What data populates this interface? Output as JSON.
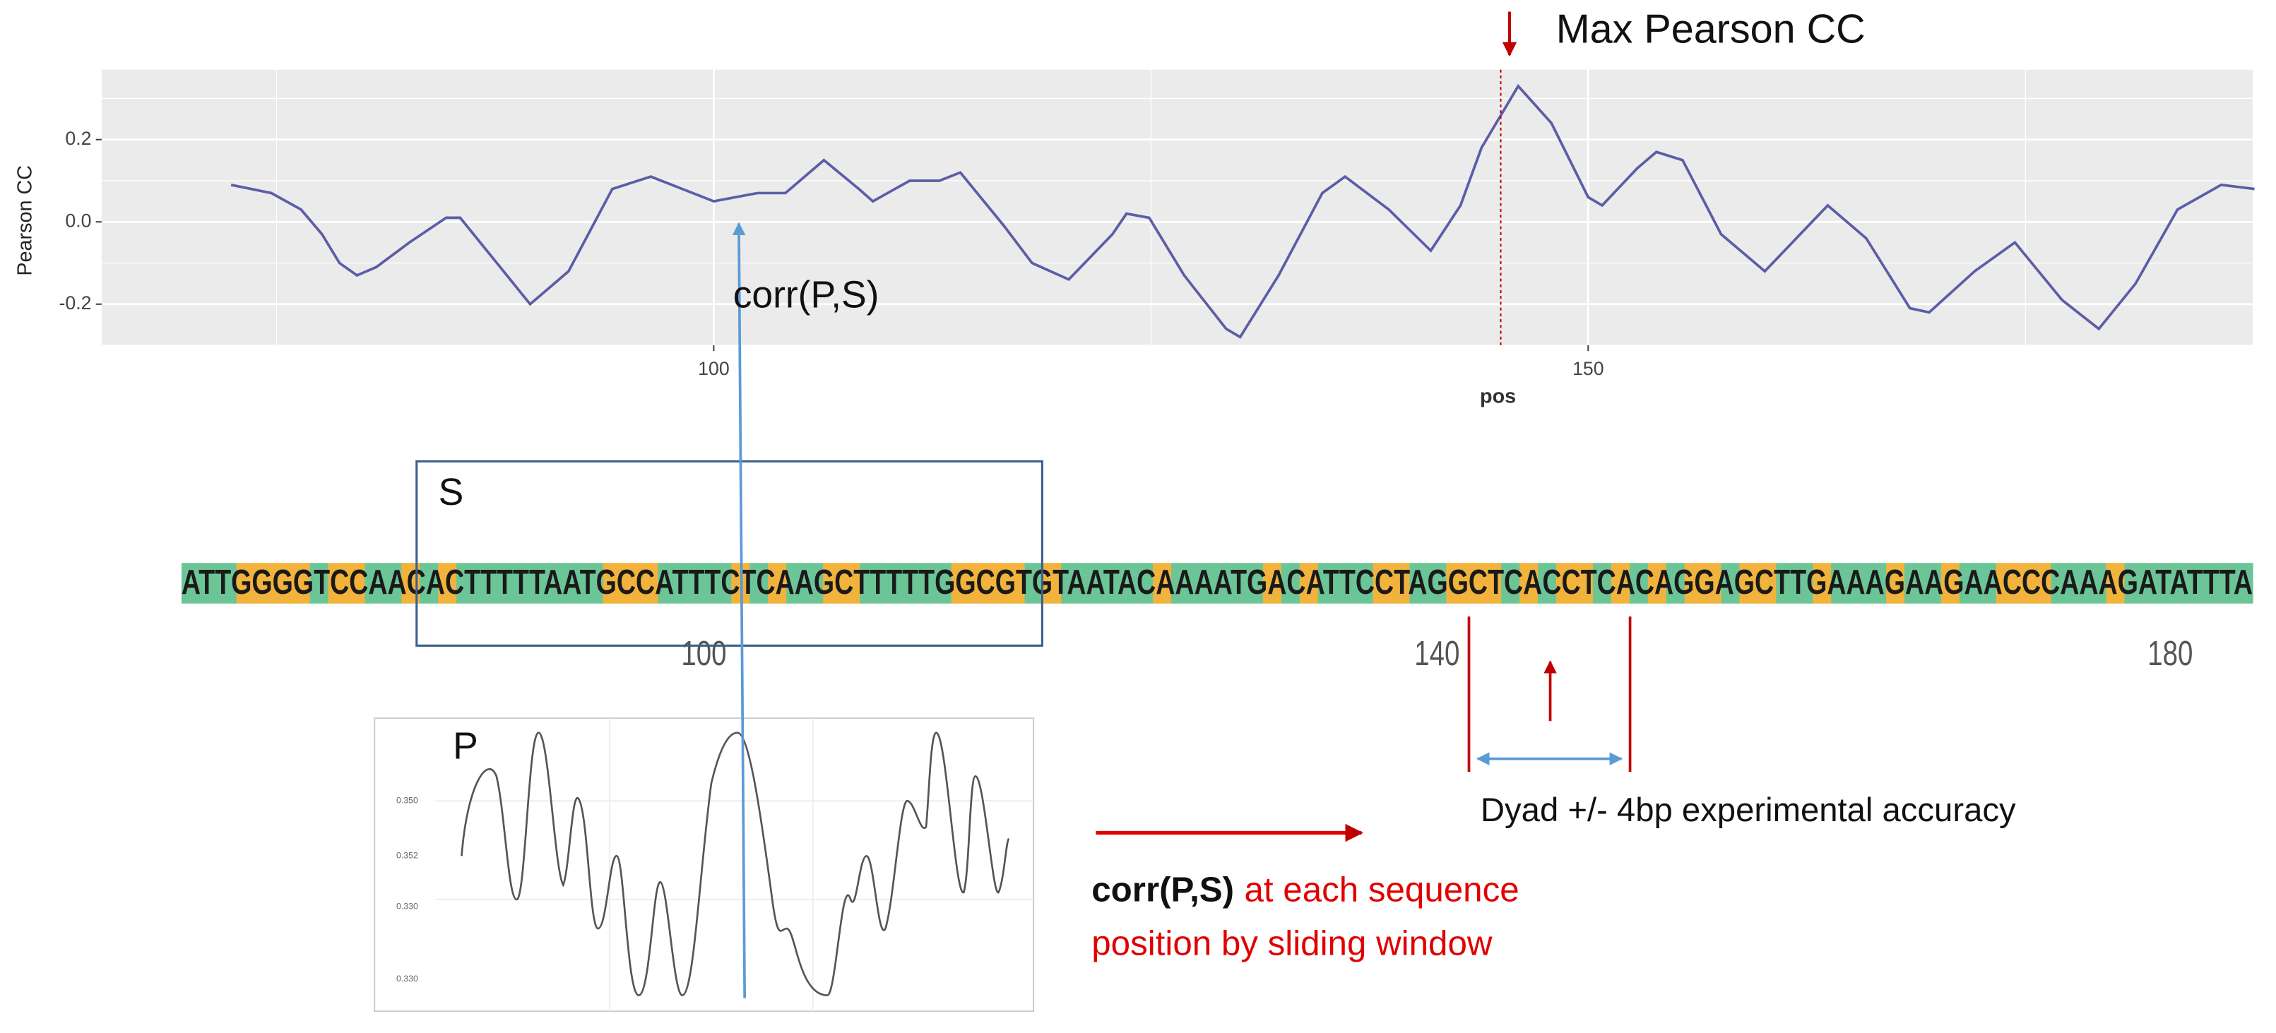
{
  "chart_data": {
    "type": "line",
    "xlabel": "pos",
    "ylabel": "Pearson CC",
    "x": [
      72.4,
      74.7,
      76.4,
      77.6,
      78.6,
      79.6,
      80.7,
      82.6,
      84.7,
      85.5,
      87.6,
      89.5,
      91.7,
      94.2,
      96.4,
      98.8,
      100,
      102.5,
      104.1,
      106.3,
      108.3,
      109.1,
      111.2,
      112.9,
      114.1,
      116.6,
      118.2,
      120.3,
      122.8,
      123.6,
      124.9,
      126.9,
      129.3,
      130.1,
      132.3,
      134.8,
      136.1,
      138.6,
      141.0,
      142.7,
      143.9,
      146.0,
      147.9,
      150.0,
      150.8,
      152.8,
      153.9,
      155.4,
      157.6,
      160.1,
      163.7,
      165.9,
      168.4,
      169.5,
      172.1,
      174.4,
      177.1,
      179.2,
      181.3,
      183.7,
      186.2,
      188.1
    ],
    "values": [
      0.09,
      0.07,
      0.03,
      -0.03,
      -0.1,
      -0.13,
      -0.11,
      -0.05,
      0.01,
      0.01,
      -0.1,
      -0.2,
      -0.12,
      0.08,
      0.11,
      0.07,
      0.05,
      0.07,
      0.07,
      0.15,
      0.08,
      0.05,
      0.1,
      0.1,
      0.12,
      -0.01,
      -0.1,
      -0.14,
      -0.03,
      0.02,
      0.01,
      -0.13,
      -0.26,
      -0.28,
      -0.13,
      0.07,
      0.11,
      0.03,
      -0.07,
      0.04,
      0.18,
      0.33,
      0.24,
      0.06,
      0.04,
      0.13,
      0.17,
      0.15,
      -0.03,
      -0.12,
      0.04,
      -0.04,
      -0.21,
      -0.22,
      -0.12,
      -0.05,
      -0.19,
      -0.26,
      -0.15,
      0.03,
      0.09,
      0.08
    ],
    "color": "#5b5ea6",
    "xlim": [
      65,
      188
    ],
    "ylim": [
      -0.3,
      0.37
    ],
    "xticks": [
      100,
      150
    ],
    "yticks": [
      -0.2,
      {
        "value": 0,
        "label": "0.0"
      },
      0.2
    ],
    "xminor": [
      75,
      125,
      175
    ],
    "yminor": [
      -0.3,
      -0.1,
      0.1,
      0.3
    ],
    "grid": true,
    "max_marker": {
      "x": 145,
      "label": "Max Pearson CC",
      "color": "#c00000"
    }
  },
  "sequence": {
    "label": "S",
    "bases": "ATTGGGGTCCAACACTTTTTAATGCCATTTCTCAAGCTTTTTGGCGTGTAATACAAAATGACATTCCTAGGCTCACCTCACAGGAGCTTGAAAGAAGAACCCAAAGATATTTA",
    "ticks": [
      100,
      140,
      180
    ]
  },
  "profile": {
    "label": "P",
    "ticks": [
      "0.350",
      "0.352",
      "0.330",
      "0.330"
    ]
  },
  "annotations": {
    "corr": "corr(P,S)",
    "dyad": "Dyad +/- 4bp experimental accuracy",
    "legend_bold": "corr(P,S)",
    "legend_rest": "at each sequence",
    "legend_line2": "position by sliding window"
  }
}
